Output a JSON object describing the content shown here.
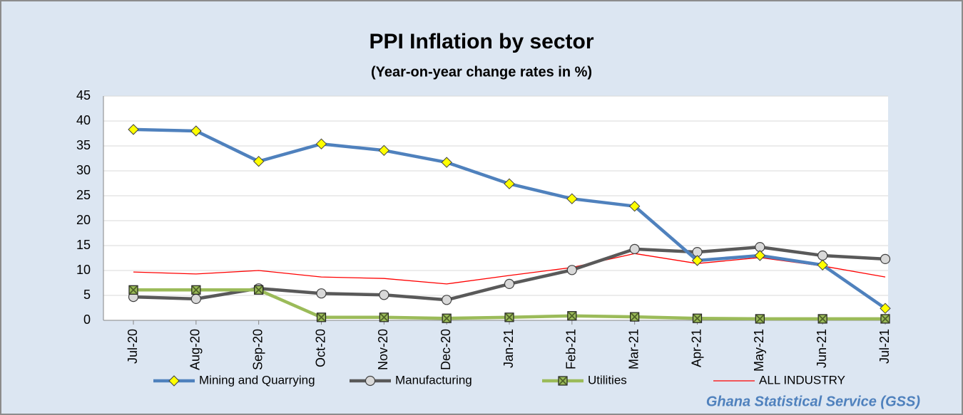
{
  "chart_data": {
    "type": "line",
    "title": "PPI Inflation by sector",
    "subtitle": "(Year-on-year change rates in %)",
    "source": "Ghana Statistical Service (GSS)",
    "categories": [
      "Jul-20",
      "Aug-20",
      "Sep-20",
      "Oct-20",
      "Nov-20",
      "Dec-20",
      "Jan-21",
      "Feb-21",
      "Mar-21",
      "Apr-21",
      "May-21",
      "Jun-21",
      "Jul-21"
    ],
    "series": [
      {
        "name": "Mining and Quarrying",
        "color": "#4f81bd",
        "marker": "diamond",
        "marker_color": "#ffff00",
        "values": [
          38.3,
          38.0,
          31.9,
          35.4,
          34.1,
          31.7,
          27.4,
          24.4,
          22.9,
          12.0,
          13.0,
          11.1,
          2.4
        ]
      },
      {
        "name": "Manufacturing",
        "color": "#595959",
        "marker": "circle",
        "marker_color": "#d9d9d9",
        "values": [
          4.7,
          4.3,
          6.4,
          5.4,
          5.1,
          4.1,
          7.3,
          10.1,
          14.3,
          13.7,
          14.7,
          13.0,
          12.3
        ]
      },
      {
        "name": "Utilities",
        "color": "#9bbb59",
        "marker": "square",
        "marker_color": "#4f6228",
        "values": [
          6.1,
          6.1,
          6.1,
          0.6,
          0.6,
          0.4,
          0.6,
          0.9,
          0.7,
          0.4,
          0.3,
          0.3,
          0.3
        ]
      },
      {
        "name": "ALL INDUSTRY",
        "color": "#ff0000",
        "marker": "none",
        "values": [
          9.7,
          9.3,
          10.0,
          8.7,
          8.4,
          7.3,
          9.0,
          10.6,
          13.4,
          11.4,
          12.6,
          10.9,
          8.7
        ]
      }
    ],
    "ylim": [
      0,
      45
    ],
    "yticks": [
      0,
      5,
      10,
      15,
      20,
      25,
      30,
      35,
      40,
      45
    ],
    "grid": true,
    "legend": "bottom"
  }
}
